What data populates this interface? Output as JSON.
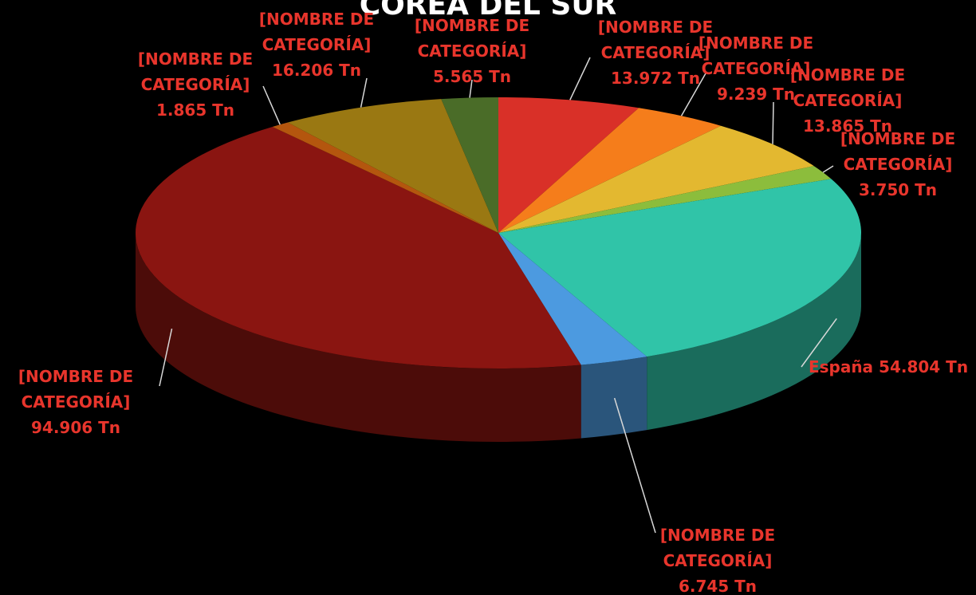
{
  "chart_data": {
    "type": "pie3d",
    "title": "COREA DEL SUR",
    "categories": [
      "[NOMBRE DE CATEGORÍA]",
      "[NOMBRE DE CATEGORÍA]",
      "[NOMBRE DE CATEGORÍA]",
      "[NOMBRE DE CATEGORÍA]",
      "España",
      "[NOMBRE DE CATEGORÍA]",
      "[NOMBRE DE CATEGORÍA]",
      "[NOMBRE DE CATEGORÍA]",
      "[NOMBRE DE CATEGORÍA]",
      "[NOMBRE DE CATEGORÍA]"
    ],
    "values": [
      13.972,
      9.239,
      13.865,
      3.75,
      54.804,
      6.745,
      94.906,
      1.865,
      16.206,
      5.565
    ],
    "value_labels": [
      "13.972 Tn",
      "9.239 Tn",
      "13.865 Tn",
      "3.750 Tn",
      "54.804 Tn",
      "6.745 Tn",
      "94.906 Tn",
      "1.865 Tn",
      "16.206 Tn",
      "5.565 Tn"
    ],
    "colors": [
      "#d93028",
      "#f57d1b",
      "#e3b830",
      "#8cbd3c",
      "#30c4a8",
      "#4c9ae0",
      "#8a1511",
      "#b4560e",
      "#9a7812",
      "#4a6c28"
    ]
  }
}
